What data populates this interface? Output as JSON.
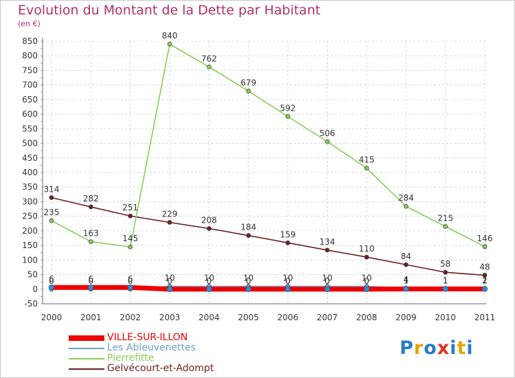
{
  "title": "Evolution du Montant de la Dette par Habitant",
  "unit": "(en €)",
  "logo": {
    "text": "Proxiti",
    "letter_colors": [
      "#2a7cc4",
      "#e6a400",
      "#2a7cc4",
      "#e03020",
      "#2a7cc4",
      "#e6a400",
      "#2a7cc4"
    ]
  },
  "chart_data": {
    "type": "line",
    "title": "Evolution du Montant de la Dette par Habitant",
    "ylabel": "(en €)",
    "xlabel": "",
    "x": [
      "2000",
      "2001",
      "2002",
      "2003",
      "2004",
      "2005",
      "2006",
      "2007",
      "2008",
      "2009",
      "2010",
      "2011"
    ],
    "ylim": [
      -50,
      850
    ],
    "yticks": [
      -50,
      0,
      50,
      100,
      150,
      200,
      250,
      300,
      350,
      400,
      450,
      500,
      550,
      600,
      650,
      700,
      750,
      800,
      850
    ],
    "grid": true,
    "legend_position": "bottom-left",
    "series": [
      {
        "name": "Gelvécourt-et-Adompt",
        "color": "#6b1f26",
        "values": [
          314,
          282,
          251,
          229,
          208,
          184,
          159,
          134,
          110,
          84,
          58,
          48
        ],
        "labels": [
          "314",
          "282",
          "251",
          "229",
          "208",
          "184",
          "159",
          "134",
          "110",
          "84",
          "58",
          "48"
        ]
      },
      {
        "name": "Pierrefitte",
        "color": "#88cc55",
        "values": [
          235,
          163,
          145,
          840,
          762,
          679,
          592,
          506,
          415,
          284,
          215,
          146
        ],
        "labels": [
          "235",
          "163",
          "145",
          "840",
          "762",
          "679",
          "592",
          "506",
          "415",
          "284",
          "215",
          "146"
        ]
      },
      {
        "name": "Les Ableuvenettes",
        "color": "#6fa0cc",
        "values": [
          0,
          0,
          0,
          10,
          10,
          10,
          10,
          10,
          10,
          4,
          1,
          2
        ],
        "labels": [
          "0",
          "0",
          "0",
          "10",
          "10",
          "10",
          "10",
          "10",
          "10",
          "4",
          "1",
          "2"
        ]
      },
      {
        "name": "VILLE-SUR-ILLON",
        "color": "#ee0000",
        "values": [
          6,
          6,
          6,
          0,
          0,
          0,
          0,
          0,
          0,
          1,
          1,
          1
        ],
        "labels": [
          "6",
          "6",
          "6",
          "0",
          "0",
          "0",
          "0",
          "0",
          "0",
          "1",
          "1",
          "1"
        ]
      }
    ],
    "legend": [
      {
        "name": "VILLE-SUR-ILLON",
        "color": "#ee0000",
        "width": 8
      },
      {
        "name": "Les Ableuvenettes",
        "color": "#6fa0cc",
        "width": 2
      },
      {
        "name": "Pierrefitte",
        "color": "#88cc55",
        "width": 2
      },
      {
        "name": "Gelvécourt-et-Adompt",
        "color": "#6b1f26",
        "width": 2
      }
    ]
  }
}
